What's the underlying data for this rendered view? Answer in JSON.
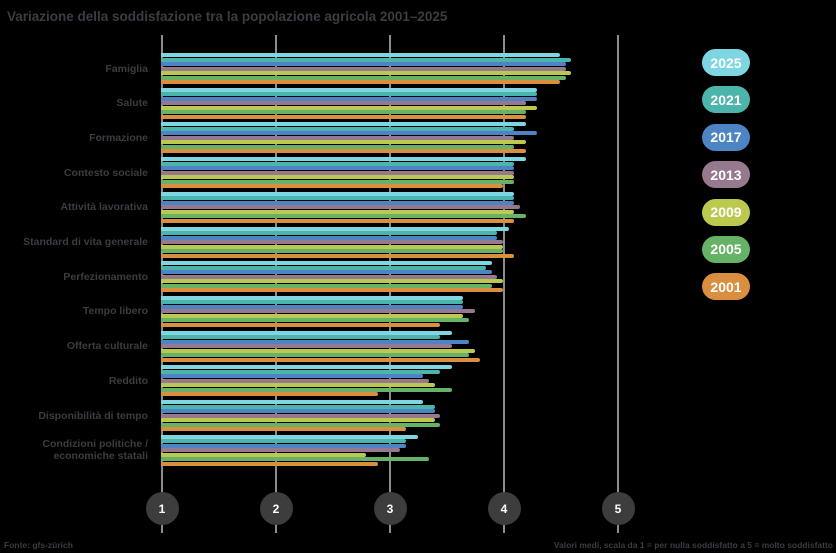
{
  "title": "Variazione della soddisfazione tra la popolazione agricola 2001–2025",
  "source": "Fonte: gfs-zürich",
  "note": "Valori medi, scala da 1 = per nulla soddisfatto a 5 = molto soddisfatto",
  "colors": {
    "background": "#000000",
    "text": "#3c3c42",
    "grid": "#8c8c8c",
    "axis_circle": "#3d3d3d",
    "axis_number": "#ffffff",
    "legend_text": "#ffffff"
  },
  "chart_data": {
    "type": "bar",
    "orientation": "horizontal",
    "title": "Variazione della soddisfazione tra la popolazione agricola 2001–2025",
    "xlabel": "",
    "ylabel": "",
    "xlim": [
      1,
      5
    ],
    "x_ticks": [
      "1",
      "2",
      "3",
      "4",
      "5"
    ],
    "grid": true,
    "legend_position": "right",
    "categories": [
      "Famiglia",
      "Salute",
      "Formazione",
      "Contesto sociale",
      "Attività lavorativa",
      "Standard di vita generale",
      "Perfezionamento",
      "Tempo libero",
      "Offerta culturale",
      "Reddito",
      "Disponibilità di tempo",
      "Condizioni politiche /\neconomiche statali"
    ],
    "series": [
      {
        "name": "2025",
        "color": "#7fd6e3",
        "values": [
          4.5,
          4.3,
          4.2,
          4.2,
          4.1,
          4.05,
          3.9,
          3.65,
          3.55,
          3.55,
          3.3,
          3.25
        ]
      },
      {
        "name": "2021",
        "color": "#4cb5ab",
        "values": [
          4.6,
          4.3,
          4.1,
          4.1,
          4.1,
          3.95,
          3.85,
          3.65,
          3.45,
          3.45,
          3.4,
          3.15
        ]
      },
      {
        "name": "2017",
        "color": "#4d84c4",
        "values": [
          4.55,
          4.3,
          4.3,
          4.1,
          4.1,
          3.95,
          3.9,
          3.65,
          3.7,
          3.3,
          3.4,
          3.15
        ]
      },
      {
        "name": "2013",
        "color": "#96798f",
        "values": [
          4.55,
          4.2,
          4.1,
          4.1,
          4.15,
          4.0,
          3.95,
          3.75,
          3.55,
          3.35,
          3.45,
          3.1
        ]
      },
      {
        "name": "2009",
        "color": "#bcc94f",
        "values": [
          4.6,
          4.3,
          4.2,
          4.1,
          4.1,
          4.0,
          4.0,
          3.65,
          3.75,
          3.4,
          3.4,
          2.8
        ]
      },
      {
        "name": "2005",
        "color": "#66b266",
        "values": [
          4.55,
          4.2,
          4.1,
          4.1,
          4.2,
          4.0,
          3.9,
          3.7,
          3.7,
          3.55,
          3.45,
          3.35
        ]
      },
      {
        "name": "2001",
        "color": "#d98f3f",
        "values": [
          4.5,
          4.2,
          4.2,
          4.0,
          4.1,
          4.1,
          4.0,
          3.45,
          3.8,
          2.9,
          3.15,
          2.9
        ]
      }
    ]
  }
}
